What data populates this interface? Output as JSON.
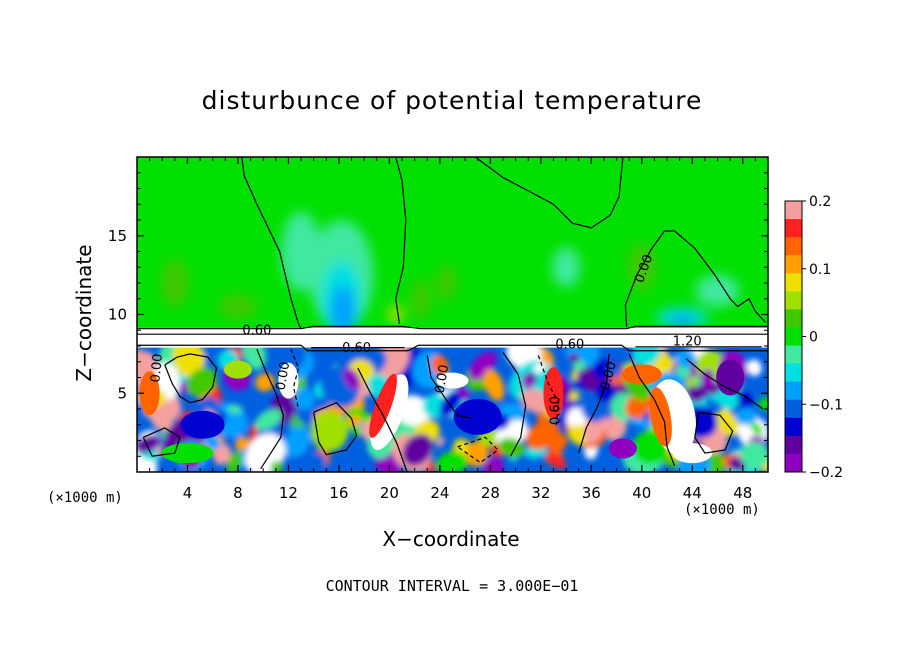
{
  "chart_data": {
    "type": "heatmap",
    "title": "disturbunce of potential temperature",
    "xlabel": "X−coordinate",
    "ylabel": "Z−coordinate",
    "x_unit": "(×1000 m)",
    "xlim": [
      0,
      50
    ],
    "ylim": [
      0,
      20
    ],
    "x_ticks": [
      "4",
      "8",
      "12",
      "16",
      "20",
      "24",
      "28",
      "32",
      "36",
      "40",
      "44",
      "48"
    ],
    "y_ticks": [
      "5",
      "10",
      "15"
    ],
    "colorbar": {
      "range": [
        -0.2,
        0.2
      ],
      "tick_labels": [
        "0.2",
        "0.1",
        "0",
        "−0.1",
        "−0.2"
      ],
      "colors": [
        "#f5a0a0",
        "#ff2020",
        "#ff6400",
        "#ffa000",
        "#f0e000",
        "#a0e000",
        "#40c800",
        "#00e000",
        "#40e8a0",
        "#00e0e0",
        "#00a0ff",
        "#0060e0",
        "#0000d0",
        "#6000a0",
        "#9000c0"
      ]
    },
    "contour_labels": [
      "0.60",
      "0.60",
      "0.00",
      "0.60",
      "1.20",
      "0.00",
      "0.00",
      "0.60",
      "0.00",
      "0.00"
    ],
    "contour_interval_note": "CONTOUR INTERVAL = 3.000E−01"
  }
}
